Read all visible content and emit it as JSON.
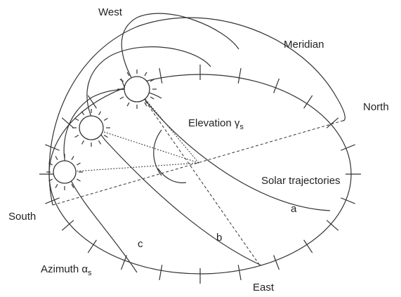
{
  "labels": {
    "west": "West",
    "meridian": "Meridian",
    "north": "North",
    "elevation": {
      "text": "Elevation γ",
      "subscript": "s"
    },
    "trajectories": "Solar trajectories",
    "south": "South",
    "a": "a",
    "b": "b",
    "c": "c",
    "azimuth": {
      "text": "Azimuth α",
      "subscript": "s"
    },
    "east": "East"
  }
}
